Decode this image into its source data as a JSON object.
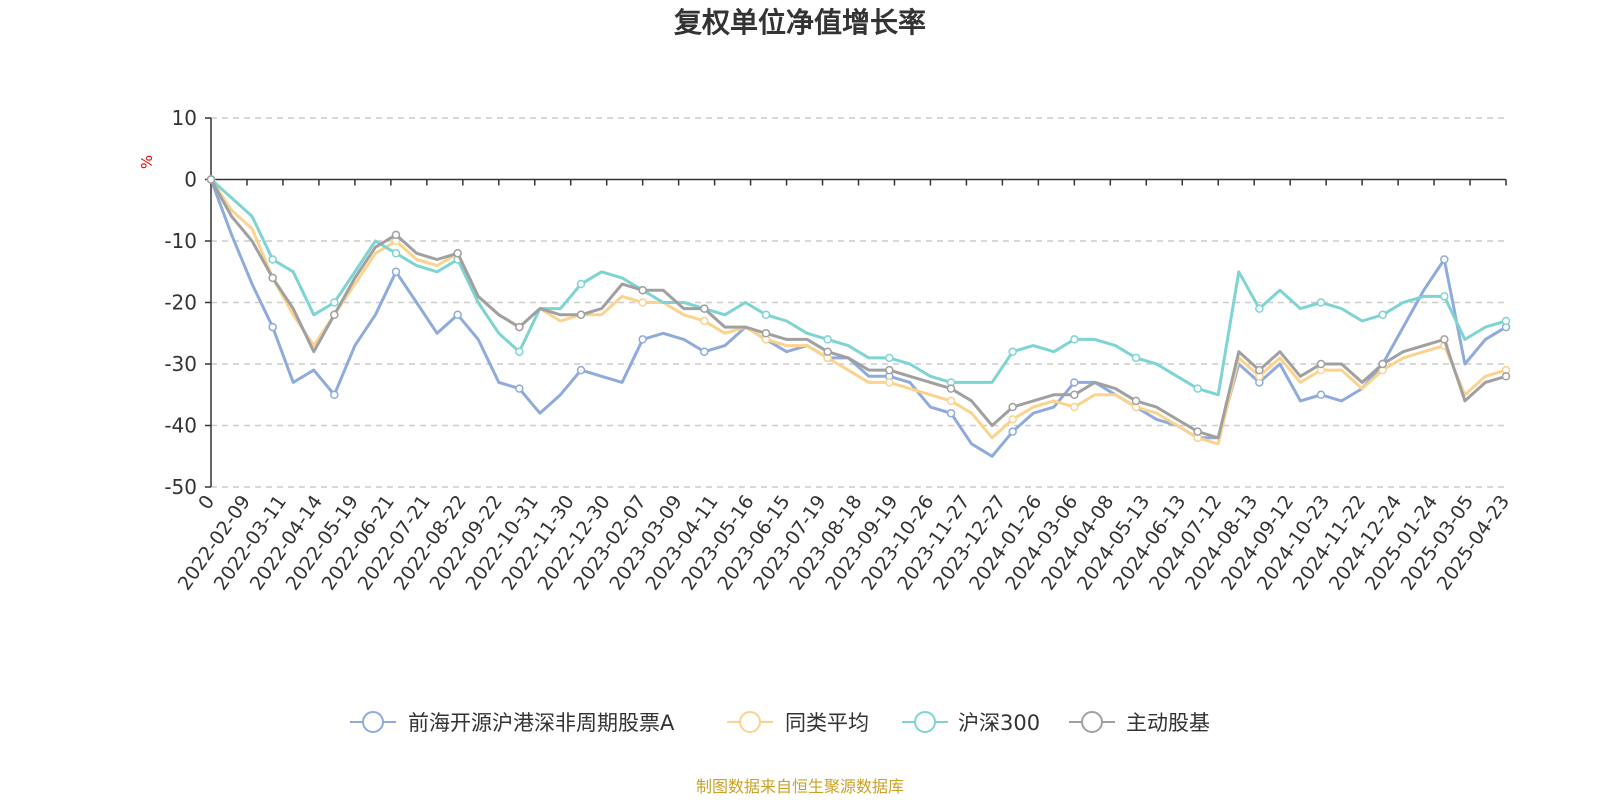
{
  "chart_data": {
    "type": "line",
    "title": "复权单位净值增长率",
    "ylabel": "%",
    "ylim": [
      -50,
      10
    ],
    "yticks": [
      10,
      0,
      -10,
      -20,
      -30,
      -40,
      -50
    ],
    "grid": true,
    "legend_position": "bottom",
    "x_labels": [
      "0",
      "2022-02-09",
      "2022-03-11",
      "2022-04-14",
      "2022-05-19",
      "2022-06-21",
      "2022-07-21",
      "2022-08-22",
      "2022-09-22",
      "2022-10-31",
      "2022-11-30",
      "2022-12-30",
      "2023-02-07",
      "2023-03-09",
      "2023-04-11",
      "2023-05-16",
      "2023-06-15",
      "2023-07-19",
      "2023-08-18",
      "2023-09-19",
      "2023-10-26",
      "2023-11-27",
      "2023-12-27",
      "2024-01-26",
      "2024-03-06",
      "2024-04-08",
      "2024-05-13",
      "2024-06-13",
      "2024-07-12",
      "2024-08-13",
      "2024-09-12",
      "2024-10-23",
      "2024-11-22",
      "2024-12-24",
      "2025-01-24",
      "2025-03-05",
      "2025-04-23"
    ],
    "series": [
      {
        "name": "前海开源沪港深非周期股票A",
        "color": "#8fabdc",
        "values": [
          0,
          -9,
          -17,
          -24,
          -33,
          -31,
          -35,
          -27,
          -22,
          -15,
          -20,
          -25,
          -22,
          -26,
          -33,
          -34,
          -38,
          -35,
          -31,
          -32,
          -33,
          -26,
          -25,
          -26,
          -28,
          -27,
          -24,
          -26,
          -28,
          -27,
          -29,
          -29,
          -32,
          -32,
          -33,
          -37,
          -38,
          -43,
          -45,
          -41,
          -38,
          -37,
          -33,
          -33,
          -35,
          -37,
          -39,
          -40,
          -42,
          -42,
          -30,
          -33,
          -30,
          -36,
          -35,
          -36,
          -34,
          -30,
          -24,
          -18,
          -13,
          -30,
          -26,
          -24
        ]
      },
      {
        "name": "同类平均",
        "color": "#fbd38d",
        "values": [
          0,
          -5,
          -8,
          -16,
          -22,
          -27,
          -22,
          -17,
          -12,
          -10,
          -13,
          -14,
          -12,
          -19,
          -22,
          -24,
          -21,
          -23,
          -22,
          -22,
          -19,
          -20,
          -20,
          -22,
          -23,
          -25,
          -24,
          -26,
          -27,
          -27,
          -29,
          -31,
          -33,
          -33,
          -34,
          -35,
          -36,
          -38,
          -42,
          -39,
          -37,
          -36,
          -37,
          -35,
          -35,
          -37,
          -38,
          -40,
          -42,
          -43,
          -29,
          -32,
          -29,
          -33,
          -31,
          -31,
          -34,
          -31,
          -29,
          -28,
          -27,
          -35,
          -32,
          -31
        ]
      },
      {
        "name": "沪深300",
        "color": "#7ed3d3",
        "values": [
          0,
          -3,
          -6,
          -13,
          -15,
          -22,
          -20,
          -15,
          -10,
          -12,
          -14,
          -15,
          -13,
          -20,
          -25,
          -28,
          -21,
          -21,
          -17,
          -15,
          -16,
          -18,
          -20,
          -20,
          -21,
          -22,
          -20,
          -22,
          -23,
          -25,
          -26,
          -27,
          -29,
          -29,
          -30,
          -32,
          -33,
          -33,
          -33,
          -28,
          -27,
          -28,
          -26,
          -26,
          -27,
          -29,
          -30,
          -32,
          -34,
          -35,
          -15,
          -21,
          -18,
          -21,
          -20,
          -21,
          -23,
          -22,
          -20,
          -19,
          -19,
          -26,
          -24,
          -23
        ]
      },
      {
        "name": "主动股基",
        "color": "#a0a0a0",
        "values": [
          0,
          -6,
          -10,
          -16,
          -21,
          -28,
          -22,
          -16,
          -11,
          -9,
          -12,
          -13,
          -12,
          -19,
          -22,
          -24,
          -21,
          -22,
          -22,
          -21,
          -17,
          -18,
          -18,
          -21,
          -21,
          -24,
          -24,
          -25,
          -26,
          -26,
          -28,
          -29,
          -31,
          -31,
          -32,
          -33,
          -34,
          -36,
          -40,
          -37,
          -36,
          -35,
          -35,
          -33,
          -34,
          -36,
          -37,
          -39,
          -41,
          -42,
          -28,
          -31,
          -28,
          -32,
          -30,
          -30,
          -33,
          -30,
          -28,
          -27,
          -26,
          -36,
          -33,
          -32
        ]
      }
    ]
  },
  "source_text": "制图数据来自恒生聚源数据库"
}
